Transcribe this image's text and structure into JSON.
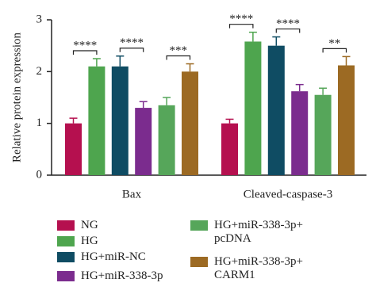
{
  "chart_data": {
    "type": "bar",
    "y_label": "Relative protein expression",
    "categories": [
      "Bax",
      "Cleaved-caspase-3"
    ],
    "series": [
      {
        "name": "NG",
        "color": "#b5104f",
        "values": [
          1.0,
          1.0
        ],
        "errors": [
          0.1,
          0.08
        ]
      },
      {
        "name": "HG",
        "color": "#4ea54e",
        "values": [
          2.1,
          2.58
        ],
        "errors": [
          0.15,
          0.18
        ]
      },
      {
        "name": "HG+miR-NC",
        "color": "#0f4c63",
        "values": [
          2.1,
          2.5
        ],
        "errors": [
          0.2,
          0.17
        ]
      },
      {
        "name": "HG+miR-338-3p",
        "color": "#7b2c8e",
        "values": [
          1.3,
          1.62
        ],
        "errors": [
          0.12,
          0.13
        ]
      },
      {
        "name": "HG+miR-338-3p+\npcDNA",
        "color": "#56a65a",
        "values": [
          1.35,
          1.55
        ],
        "errors": [
          0.15,
          0.13
        ]
      },
      {
        "name": "HG+miR-338-3p+\nCARM1",
        "color": "#9c6a23",
        "values": [
          2.0,
          2.12
        ],
        "errors": [
          0.15,
          0.17
        ]
      }
    ],
    "significance": [
      [
        "****",
        "****",
        "***"
      ],
      [
        "****",
        "****",
        "**"
      ]
    ],
    "ylim": [
      0,
      3
    ],
    "yticks": [
      0,
      1,
      2,
      3
    ]
  }
}
